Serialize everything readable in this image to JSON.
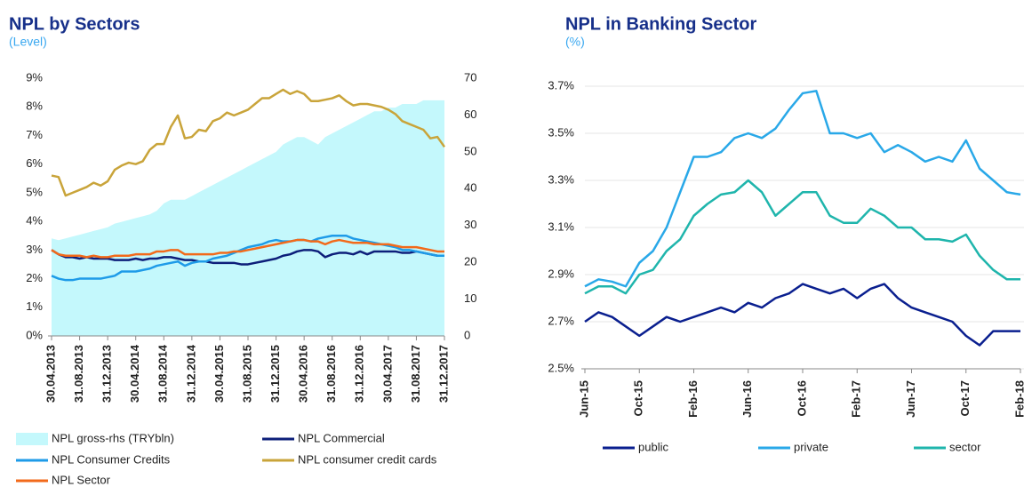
{
  "chart_data": [
    {
      "type": "line",
      "title": "NPL by Sectors",
      "subtitle": "(Level)",
      "categories": [
        "30.04.2013",
        null,
        null,
        null,
        "31.08.2013",
        null,
        null,
        null,
        "31.12.2013",
        null,
        null,
        null,
        "30.04.2014",
        null,
        null,
        null,
        "31.08.2014",
        null,
        null,
        null,
        "31.12.2014",
        null,
        null,
        null,
        "30.04.2015",
        null,
        null,
        null,
        "31.08.2015",
        null,
        null,
        null,
        "31.12.2015",
        null,
        null,
        null,
        "30.04.2016",
        null,
        null,
        null,
        "31.08.2016",
        null,
        null,
        null,
        "31.12.2016",
        null,
        null,
        null,
        "30.04.2017",
        null,
        null,
        null,
        "31.08.2017",
        null,
        null,
        null,
        "31.12.2017"
      ],
      "series": [
        {
          "name": "NPL gross-rhs (TRYbln)",
          "color": "#c4f8fc",
          "style": "area",
          "axis": "y2",
          "values": [
            26.5,
            26,
            26.5,
            27,
            27.5,
            28,
            28.5,
            29,
            29.5,
            30.5,
            31,
            31.5,
            32,
            32.5,
            33,
            34,
            36,
            37,
            37,
            37,
            38,
            39,
            40,
            41,
            42,
            43,
            44,
            45,
            46,
            47,
            48,
            49,
            50,
            52,
            53,
            54,
            54,
            53,
            52,
            54,
            55,
            56,
            57,
            58,
            59,
            60,
            61,
            61,
            62,
            62,
            63,
            63,
            63,
            64,
            64,
            64,
            64
          ]
        },
        {
          "name": "NPL Commercial",
          "color": "#0d1f7a",
          "values": [
            3.0,
            2.85,
            2.75,
            2.75,
            2.7,
            2.75,
            2.7,
            2.7,
            2.7,
            2.65,
            2.65,
            2.65,
            2.7,
            2.65,
            2.7,
            2.7,
            2.75,
            2.75,
            2.7,
            2.65,
            2.65,
            2.6,
            2.6,
            2.55,
            2.55,
            2.55,
            2.55,
            2.5,
            2.5,
            2.55,
            2.6,
            2.65,
            2.7,
            2.8,
            2.85,
            2.95,
            3.0,
            3.0,
            2.95,
            2.75,
            2.85,
            2.9,
            2.9,
            2.85,
            2.95,
            2.85,
            2.95,
            2.95,
            2.95,
            2.95,
            2.9,
            2.9,
            2.95,
            2.9,
            2.85,
            2.8,
            2.8
          ]
        },
        {
          "name": "NPL Consumer Credits",
          "color": "#1e9be8",
          "values": [
            2.1,
            2.0,
            1.95,
            1.95,
            2.0,
            2.0,
            2.0,
            2.0,
            2.05,
            2.1,
            2.25,
            2.25,
            2.25,
            2.3,
            2.35,
            2.45,
            2.5,
            2.55,
            2.6,
            2.45,
            2.55,
            2.6,
            2.6,
            2.7,
            2.75,
            2.8,
            2.9,
            3.0,
            3.1,
            3.15,
            3.2,
            3.3,
            3.35,
            3.3,
            3.3,
            3.35,
            3.35,
            3.3,
            3.4,
            3.45,
            3.5,
            3.5,
            3.5,
            3.4,
            3.35,
            3.3,
            3.25,
            3.2,
            3.15,
            3.1,
            3.0,
            3.0,
            2.95,
            2.9,
            2.85,
            2.8,
            2.8
          ]
        },
        {
          "name": "NPL consumer credit cards",
          "color": "#c9a43a",
          "values": [
            5.6,
            5.55,
            4.9,
            5.0,
            5.1,
            5.2,
            5.35,
            5.25,
            5.4,
            5.8,
            5.95,
            6.05,
            6.0,
            6.1,
            6.5,
            6.7,
            6.7,
            7.3,
            7.7,
            6.9,
            6.95,
            7.2,
            7.15,
            7.5,
            7.6,
            7.8,
            7.7,
            7.8,
            7.9,
            8.1,
            8.3,
            8.3,
            8.45,
            8.6,
            8.45,
            8.55,
            8.45,
            8.2,
            8.2,
            8.25,
            8.3,
            8.4,
            8.2,
            8.05,
            8.1,
            8.1,
            8.05,
            8.0,
            7.9,
            7.75,
            7.5,
            7.4,
            7.3,
            7.2,
            6.9,
            6.95,
            6.6
          ]
        },
        {
          "name": "NPL Sector",
          "color": "#f26a1b",
          "values": [
            3.0,
            2.85,
            2.8,
            2.8,
            2.8,
            2.75,
            2.8,
            2.75,
            2.75,
            2.8,
            2.8,
            2.8,
            2.85,
            2.85,
            2.85,
            2.95,
            2.95,
            3.0,
            3.0,
            2.85,
            2.85,
            2.85,
            2.85,
            2.85,
            2.9,
            2.9,
            2.95,
            2.95,
            3.0,
            3.05,
            3.1,
            3.15,
            3.2,
            3.25,
            3.3,
            3.35,
            3.35,
            3.3,
            3.3,
            3.2,
            3.3,
            3.35,
            3.3,
            3.25,
            3.25,
            3.25,
            3.2,
            3.2,
            3.2,
            3.15,
            3.1,
            3.1,
            3.1,
            3.05,
            3.0,
            2.95,
            2.95
          ]
        }
      ],
      "ylim": [
        0,
        9
      ],
      "yticks": [
        {
          "value": 0,
          "label": "0%"
        },
        {
          "value": 1,
          "label": "1%"
        },
        {
          "value": 2,
          "label": "2%"
        },
        {
          "value": 3,
          "label": "3%"
        },
        {
          "value": 4,
          "label": "4%"
        },
        {
          "value": 5,
          "label": "5%"
        },
        {
          "value": 6,
          "label": "6%"
        },
        {
          "value": 7,
          "label": "7%"
        },
        {
          "value": 8,
          "label": "8%"
        },
        {
          "value": 9,
          "label": "9%"
        }
      ],
      "y2lim": [
        0,
        70
      ],
      "y2ticks": [
        0,
        10,
        20,
        30,
        40,
        50,
        60,
        70
      ],
      "grid": false
    },
    {
      "type": "line",
      "title": "NPL in Banking Sector",
      "subtitle": "(%)",
      "categories": [
        "Jun-15",
        null,
        null,
        null,
        "Oct-15",
        null,
        null,
        null,
        "Feb-16",
        null,
        null,
        null,
        "Jun-16",
        null,
        null,
        null,
        "Oct-16",
        null,
        null,
        null,
        "Feb-17",
        null,
        null,
        null,
        "Jun-17",
        null,
        null,
        null,
        "Oct-17",
        null,
        null,
        null,
        "Feb-18"
      ],
      "series": [
        {
          "name": "public",
          "color": "#0a1f8f",
          "values": [
            2.7,
            2.74,
            2.72,
            2.68,
            2.64,
            2.68,
            2.72,
            2.7,
            2.72,
            2.74,
            2.76,
            2.74,
            2.78,
            2.76,
            2.8,
            2.82,
            2.86,
            2.84,
            2.82,
            2.84,
            2.8,
            2.84,
            2.86,
            2.8,
            2.76,
            2.74,
            2.72,
            2.7,
            2.64,
            2.6,
            2.66,
            2.66,
            2.66
          ]
        },
        {
          "name": "private",
          "color": "#29a8e8",
          "values": [
            2.85,
            2.88,
            2.87,
            2.85,
            2.95,
            3.0,
            3.1,
            3.25,
            3.4,
            3.4,
            3.42,
            3.48,
            3.5,
            3.48,
            3.52,
            3.6,
            3.67,
            3.68,
            3.5,
            3.5,
            3.48,
            3.5,
            3.42,
            3.45,
            3.42,
            3.38,
            3.4,
            3.38,
            3.47,
            3.35,
            3.3,
            3.25,
            3.24
          ]
        },
        {
          "name": "sector",
          "color": "#1fb5ac",
          "values": [
            2.82,
            2.85,
            2.85,
            2.82,
            2.9,
            2.92,
            3.0,
            3.05,
            3.15,
            3.2,
            3.24,
            3.25,
            3.3,
            3.25,
            3.15,
            3.2,
            3.25,
            3.25,
            3.15,
            3.12,
            3.12,
            3.18,
            3.15,
            3.1,
            3.1,
            3.05,
            3.05,
            3.04,
            3.07,
            2.98,
            2.92,
            2.88,
            2.88
          ]
        }
      ],
      "ylim": [
        2.5,
        3.7
      ],
      "yticks": [
        {
          "value": 2.5,
          "label": "2.5%"
        },
        {
          "value": 2.7,
          "label": "2.7%"
        },
        {
          "value": 2.9,
          "label": "2.9%"
        },
        {
          "value": 3.1,
          "label": "3.1%"
        },
        {
          "value": 3.3,
          "label": "3.3%"
        },
        {
          "value": 3.5,
          "label": "3.5%"
        },
        {
          "value": 3.7,
          "label": "3.7%"
        }
      ],
      "grid": true
    }
  ]
}
